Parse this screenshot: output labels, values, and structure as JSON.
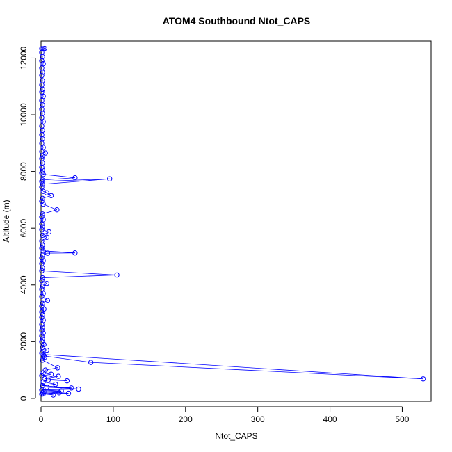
{
  "chart_data": {
    "type": "line",
    "title": "ATOM4 Southbound Ntot_CAPS",
    "xlabel": "Ntot_CAPS",
    "ylabel": "Altitude (m)",
    "xlim": [
      0,
      540
    ],
    "ylim": [
      -100,
      12600
    ],
    "xticks": [
      0,
      100,
      200,
      300,
      400,
      500
    ],
    "yticks": [
      0,
      2000,
      4000,
      6000,
      8000,
      10000,
      12000
    ],
    "grid": false,
    "legend": "none",
    "markers": "open-circle",
    "color": "#0000ff",
    "series": [
      {
        "values": [
          [
            1,
            12330
          ],
          [
            3,
            12330
          ],
          [
            5,
            12340
          ],
          [
            1,
            12200
          ],
          [
            2,
            12050
          ],
          [
            1,
            11900
          ],
          [
            3,
            11800
          ],
          [
            1,
            11650
          ],
          [
            2,
            11500
          ],
          [
            1,
            11380
          ],
          [
            2,
            11200
          ],
          [
            1,
            11050
          ],
          [
            2,
            10900
          ],
          [
            1,
            10800
          ],
          [
            3,
            10650
          ],
          [
            1,
            10500
          ],
          [
            2,
            10350
          ],
          [
            1,
            10200
          ],
          [
            2,
            10050
          ],
          [
            1,
            9900
          ],
          [
            3,
            9750
          ],
          [
            1,
            9600
          ],
          [
            2,
            9450
          ],
          [
            1,
            9300
          ],
          [
            2,
            9150
          ],
          [
            1,
            9000
          ],
          [
            3,
            8850
          ],
          [
            1,
            8700
          ],
          [
            6,
            8650
          ],
          [
            2,
            8550
          ],
          [
            1,
            8450
          ],
          [
            2,
            8300
          ],
          [
            1,
            8150
          ],
          [
            2,
            8050
          ],
          [
            1,
            7950
          ],
          [
            3,
            7900
          ],
          [
            47,
            7780
          ],
          [
            2,
            7700
          ],
          [
            1,
            7650
          ],
          [
            95,
            7740
          ],
          [
            2,
            7550
          ],
          [
            1,
            7450
          ],
          [
            3,
            7300
          ],
          [
            8,
            7250
          ],
          [
            14,
            7150
          ],
          [
            2,
            7050
          ],
          [
            1,
            6950
          ],
          [
            3,
            6850
          ],
          [
            22,
            6650
          ],
          [
            2,
            6500
          ],
          [
            1,
            6400
          ],
          [
            3,
            6300
          ],
          [
            1,
            6150
          ],
          [
            2,
            6050
          ],
          [
            1,
            5950
          ],
          [
            11,
            5870
          ],
          [
            2,
            5750
          ],
          [
            8,
            5680
          ],
          [
            1,
            5550
          ],
          [
            2,
            5400
          ],
          [
            1,
            5300
          ],
          [
            3,
            5200
          ],
          [
            47,
            5130
          ],
          [
            9,
            5120
          ],
          [
            2,
            5050
          ],
          [
            1,
            4950
          ],
          [
            3,
            4850
          ],
          [
            1,
            4750
          ],
          [
            2,
            4600
          ],
          [
            1,
            4500
          ],
          [
            105,
            4350
          ],
          [
            2,
            4250
          ],
          [
            1,
            4150
          ],
          [
            8,
            4050
          ],
          [
            2,
            3950
          ],
          [
            1,
            3850
          ],
          [
            3,
            3700
          ],
          [
            1,
            3600
          ],
          [
            9,
            3450
          ],
          [
            2,
            3350
          ],
          [
            1,
            3250
          ],
          [
            4,
            3150
          ],
          [
            1,
            3050
          ],
          [
            2,
            2950
          ],
          [
            1,
            2850
          ],
          [
            3,
            2750
          ],
          [
            1,
            2600
          ],
          [
            2,
            2500
          ],
          [
            1,
            2400
          ],
          [
            3,
            2300
          ],
          [
            1,
            2200
          ],
          [
            2,
            2100
          ],
          [
            1,
            2000
          ],
          [
            4,
            1900
          ],
          [
            2,
            1800
          ],
          [
            8,
            1700
          ],
          [
            1,
            1600
          ],
          [
            3,
            1550
          ],
          [
            529,
            690
          ],
          [
            69,
            1270
          ],
          [
            4,
            1500
          ],
          [
            5,
            1450
          ],
          [
            2,
            1350
          ],
          [
            23,
            1080
          ],
          [
            6,
            1000
          ],
          [
            3,
            900
          ],
          [
            14,
            850
          ],
          [
            1,
            800
          ],
          [
            24,
            780
          ],
          [
            5,
            700
          ],
          [
            36,
            620
          ],
          [
            10,
            650
          ],
          [
            3,
            580
          ],
          [
            20,
            500
          ],
          [
            2,
            450
          ],
          [
            42,
            370
          ],
          [
            8,
            400
          ],
          [
            52,
            330
          ],
          [
            1,
            300
          ],
          [
            28,
            260
          ],
          [
            4,
            240
          ],
          [
            38,
            180
          ],
          [
            2,
            200
          ],
          [
            17,
            120
          ],
          [
            3,
            160
          ],
          [
            1,
            150
          ],
          [
            25,
            200
          ]
        ]
      }
    ]
  }
}
